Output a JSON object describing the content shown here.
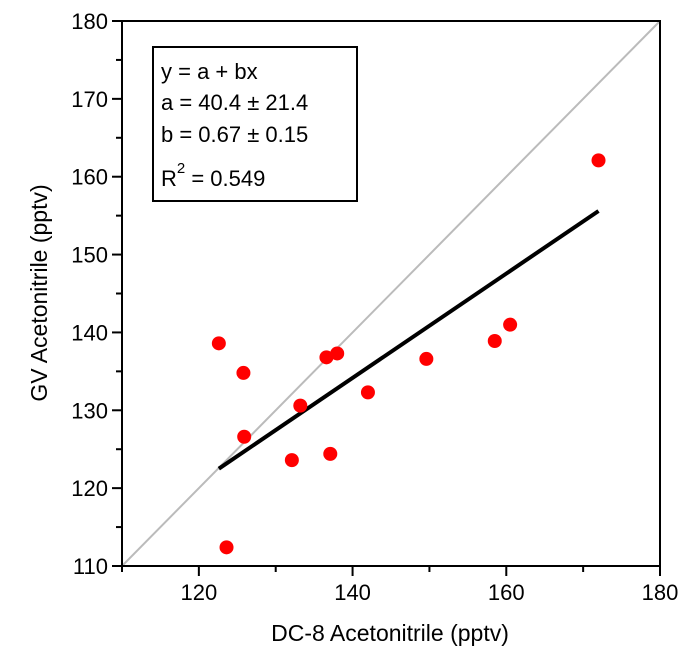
{
  "chart_data": {
    "type": "scatter",
    "xlabel": "DC-8 Acetonitrile (pptv)",
    "ylabel": "GV Acetonitrile (pptv)",
    "xlim": [
      110,
      180
    ],
    "ylim": [
      110,
      180
    ],
    "x_ticks": [
      120,
      140,
      160,
      180
    ],
    "y_ticks": [
      110,
      120,
      130,
      140,
      150,
      160,
      170,
      180
    ],
    "x_tick_labels": [
      "120",
      "140",
      "160",
      "180"
    ],
    "y_tick_labels": [
      "110",
      "120",
      "130",
      "140",
      "150",
      "160",
      "170",
      "180"
    ],
    "grid": false,
    "colors": {
      "points": "#ff0000",
      "fit_line": "#000000",
      "one_to_one_line": "#bbbbbb",
      "axes": "#000000"
    },
    "series": [
      {
        "type": "scatter",
        "x": [
          123.6,
          122.6,
          125.8,
          125.9,
          132.1,
          133.2,
          136.6,
          137.1,
          138.0,
          142.0,
          149.6,
          158.5,
          160.5,
          172.0
        ],
        "y": [
          112.4,
          138.6,
          134.8,
          126.6,
          123.6,
          130.6,
          136.8,
          124.4,
          137.3,
          132.3,
          136.6,
          138.9,
          141.0,
          162.1
        ]
      },
      {
        "type": "fit_line",
        "x": [
          122.6,
          172.0
        ],
        "y": [
          122.5,
          155.6
        ]
      },
      {
        "type": "one_to_one_line",
        "x": [
          110,
          180
        ],
        "y": [
          110,
          180
        ]
      }
    ],
    "annotation": {
      "equation": "y = a + bx",
      "a_text": "a = 40.4 ± 21.4",
      "b_text": "b = 0.67 ± 0.15",
      "r2_prefix": "R",
      "r2_superscript": "2",
      "r2_value": " = 0.549"
    }
  }
}
